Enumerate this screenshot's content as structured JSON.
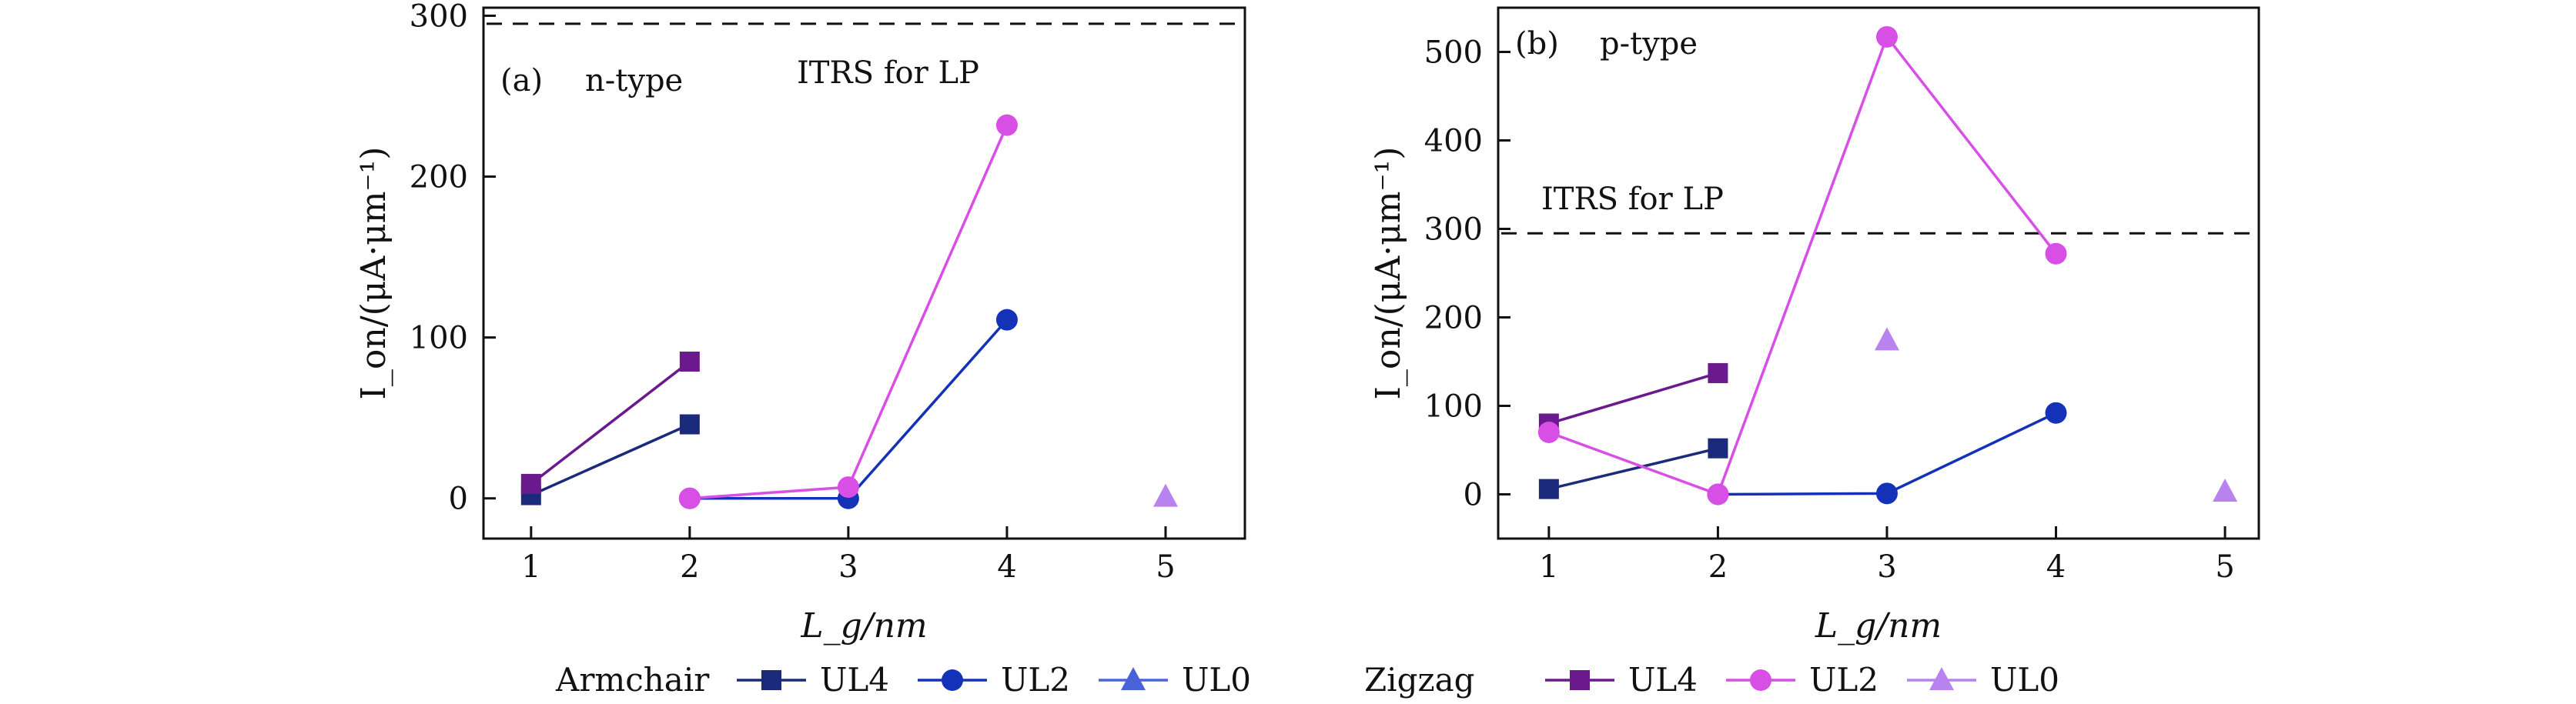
{
  "chart_data": [
    {
      "type": "line",
      "panel_label": "(a)",
      "subtitle": "n-type",
      "xlabel": "L_g/nm",
      "ylabel": "I_on/(μA·μm⁻¹)",
      "xlim": [
        0.7,
        5.5
      ],
      "ylim": [
        -25,
        305
      ],
      "xticks": [
        1,
        2,
        3,
        4,
        5
      ],
      "yticks": [
        0,
        100,
        200,
        300
      ],
      "reference_line": {
        "value": 295,
        "label": "ITRS  for LP"
      },
      "series": [
        {
          "name": "UL4",
          "group": "Armchair",
          "marker": "square",
          "color": "#1b2a7a",
          "x": [
            1,
            2
          ],
          "y": [
            2,
            46
          ],
          "connect": true
        },
        {
          "name": "UL2",
          "group": "Armchair",
          "marker": "circle",
          "color": "#1432b8",
          "x": [
            2,
            3,
            4
          ],
          "y": [
            0,
            0,
            111
          ],
          "connect": true
        },
        {
          "name": "UL0",
          "group": "Armchair",
          "marker": "triangle",
          "color": "#4a63d8",
          "x": [],
          "y": [],
          "connect": false
        },
        {
          "name": "UL4",
          "group": "Zigzag",
          "marker": "square",
          "color": "#6a1a8c",
          "x": [
            1,
            2
          ],
          "y": [
            9,
            85
          ],
          "connect": true
        },
        {
          "name": "UL2",
          "group": "Zigzag",
          "marker": "circle",
          "color": "#d84fe6",
          "x": [
            2,
            3,
            4
          ],
          "y": [
            0,
            7,
            232
          ],
          "connect": true
        },
        {
          "name": "UL0",
          "group": "Zigzag",
          "marker": "triangle",
          "color": "#b983ef",
          "x": [
            5
          ],
          "y": [
            1
          ],
          "connect": false
        }
      ]
    },
    {
      "type": "line",
      "panel_label": "(b)",
      "subtitle": "p-type",
      "xlabel": "L_g/nm",
      "ylabel": "I_on/(μA·μm⁻¹)",
      "xlim": [
        0.7,
        5.2
      ],
      "ylim": [
        -50,
        550
      ],
      "xticks": [
        1,
        2,
        3,
        4,
        5
      ],
      "yticks": [
        0,
        100,
        200,
        300,
        400,
        500
      ],
      "reference_line": {
        "value": 295,
        "label": "ITRS  for LP"
      },
      "series": [
        {
          "name": "UL4",
          "group": "Armchair",
          "marker": "square",
          "color": "#1b2a7a",
          "x": [
            1,
            2
          ],
          "y": [
            6,
            52
          ],
          "connect": true
        },
        {
          "name": "UL2",
          "group": "Armchair",
          "marker": "circle",
          "color": "#1432b8",
          "x": [
            2,
            3,
            4
          ],
          "y": [
            0,
            1,
            92
          ],
          "connect": true
        },
        {
          "name": "UL0",
          "group": "Armchair",
          "marker": "triangle",
          "color": "#4a63d8",
          "x": [],
          "y": [],
          "connect": false
        },
        {
          "name": "UL4",
          "group": "Zigzag",
          "marker": "square",
          "color": "#6a1a8c",
          "x": [
            1,
            2
          ],
          "y": [
            80,
            137
          ],
          "connect": true
        },
        {
          "name": "UL2",
          "group": "Zigzag",
          "marker": "circle",
          "color": "#d84fe6",
          "x": [
            1,
            2,
            3,
            4
          ],
          "y": [
            70,
            0,
            517,
            272
          ],
          "connect": true
        },
        {
          "name": "UL0",
          "group": "Zigzag",
          "marker": "triangle",
          "color": "#b983ef",
          "x": [
            3,
            5
          ],
          "y": [
            174,
            3
          ],
          "connect": false
        }
      ]
    }
  ],
  "legend": {
    "groups": [
      {
        "label": "Armchair",
        "items": [
          {
            "label": "UL4",
            "marker": "square",
            "color": "#1b2a7a"
          },
          {
            "label": "UL2",
            "marker": "circle",
            "color": "#1432b8"
          },
          {
            "label": "UL0",
            "marker": "triangle",
            "color": "#4a63d8"
          }
        ]
      },
      {
        "label": "Zigzag",
        "items": [
          {
            "label": "UL4",
            "marker": "square",
            "color": "#6a1a8c"
          },
          {
            "label": "UL2",
            "marker": "circle",
            "color": "#d84fe6"
          },
          {
            "label": "UL0",
            "marker": "triangle",
            "color": "#b983ef"
          }
        ]
      }
    ]
  }
}
